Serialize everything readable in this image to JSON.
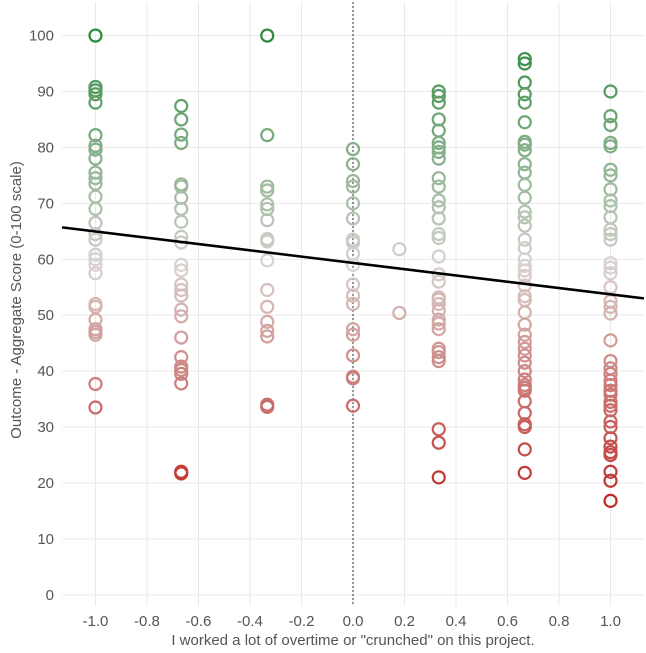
{
  "chart_data": {
    "type": "scatter",
    "title": "",
    "xlabel": "I worked a lot of overtime or \"crunched\" on this project.",
    "ylabel": "Outcome - Aggregate Score (0-100 scale)",
    "xlim": [
      -1.13,
      1.13
    ],
    "ylim": [
      -2,
      106
    ],
    "grid": true,
    "x_ticks": [
      -1.0,
      -0.8,
      -0.6,
      -0.4,
      -0.2,
      0.0,
      0.2,
      0.4,
      0.6,
      0.8,
      1.0
    ],
    "x_tick_labels": [
      "-1.0",
      "-0.8",
      "-0.6",
      "-0.4",
      "-0.2",
      "0.0",
      "0.2",
      "0.4",
      "0.6",
      "0.8",
      "1.0"
    ],
    "y_ticks": [
      0,
      10,
      20,
      30,
      40,
      50,
      60,
      70,
      80,
      90,
      100
    ],
    "y_tick_labels": [
      "0",
      "10",
      "20",
      "30",
      "40",
      "50",
      "60",
      "70",
      "80",
      "90",
      "100"
    ],
    "reference_line_x": 0.0,
    "trendline": {
      "x": [
        -1.13,
        1.13
      ],
      "y": [
        65.7,
        53.0
      ],
      "color": "#000000"
    },
    "color_scale": {
      "low": "#c02a26",
      "mid": "#d9d3d1",
      "high": "#2e8a3e",
      "low_value": 17,
      "mid_value": 59,
      "high_value": 100
    },
    "series": [
      {
        "name": "points",
        "points": [
          {
            "x": -1.0,
            "y": 100
          },
          {
            "x": -1.0,
            "y": 90.8
          },
          {
            "x": -1.0,
            "y": 90.2
          },
          {
            "x": -1.0,
            "y": 89.5
          },
          {
            "x": -1.0,
            "y": 88
          },
          {
            "x": -1.0,
            "y": 82.2
          },
          {
            "x": -1.0,
            "y": 80.3
          },
          {
            "x": -1.0,
            "y": 79.6
          },
          {
            "x": -1.0,
            "y": 78
          },
          {
            "x": -1.0,
            "y": 75.5
          },
          {
            "x": -1.0,
            "y": 74.5
          },
          {
            "x": -1.0,
            "y": 73.5
          },
          {
            "x": -1.0,
            "y": 71.2
          },
          {
            "x": -1.0,
            "y": 69
          },
          {
            "x": -1.0,
            "y": 66.5
          },
          {
            "x": -1.0,
            "y": 64.5
          },
          {
            "x": -1.0,
            "y": 63.5
          },
          {
            "x": -1.0,
            "y": 60.8
          },
          {
            "x": -1.0,
            "y": 60
          },
          {
            "x": -1.0,
            "y": 59
          },
          {
            "x": -1.0,
            "y": 57.5
          },
          {
            "x": -1.0,
            "y": 52
          },
          {
            "x": -1.0,
            "y": 51.5
          },
          {
            "x": -1.0,
            "y": 49.2
          },
          {
            "x": -1.0,
            "y": 47.5
          },
          {
            "x": -1.0,
            "y": 47
          },
          {
            "x": -1.0,
            "y": 46.5
          },
          {
            "x": -1.0,
            "y": 37.7
          },
          {
            "x": -1.0,
            "y": 33.5
          },
          {
            "x": -0.667,
            "y": 87.4
          },
          {
            "x": -0.667,
            "y": 85
          },
          {
            "x": -0.667,
            "y": 82.3
          },
          {
            "x": -0.667,
            "y": 80.8
          },
          {
            "x": -0.667,
            "y": 73.4
          },
          {
            "x": -0.667,
            "y": 73
          },
          {
            "x": -0.667,
            "y": 71
          },
          {
            "x": -0.667,
            "y": 69
          },
          {
            "x": -0.667,
            "y": 66.7
          },
          {
            "x": -0.667,
            "y": 64
          },
          {
            "x": -0.667,
            "y": 63
          },
          {
            "x": -0.667,
            "y": 59
          },
          {
            "x": -0.667,
            "y": 58
          },
          {
            "x": -0.667,
            "y": 55.5
          },
          {
            "x": -0.667,
            "y": 54.5
          },
          {
            "x": -0.667,
            "y": 53.5
          },
          {
            "x": -0.667,
            "y": 51
          },
          {
            "x": -0.667,
            "y": 49.8
          },
          {
            "x": -0.667,
            "y": 46
          },
          {
            "x": -0.667,
            "y": 42.5
          },
          {
            "x": -0.667,
            "y": 40.8
          },
          {
            "x": -0.667,
            "y": 40.2
          },
          {
            "x": -0.667,
            "y": 39.5
          },
          {
            "x": -0.667,
            "y": 37.8
          },
          {
            "x": -0.667,
            "y": 22
          },
          {
            "x": -0.667,
            "y": 21.7
          },
          {
            "x": -0.333,
            "y": 100
          },
          {
            "x": -0.333,
            "y": 82.2
          },
          {
            "x": -0.333,
            "y": 73
          },
          {
            "x": -0.333,
            "y": 72.3
          },
          {
            "x": -0.333,
            "y": 69.8
          },
          {
            "x": -0.333,
            "y": 69
          },
          {
            "x": -0.333,
            "y": 67
          },
          {
            "x": -0.333,
            "y": 63.6
          },
          {
            "x": -0.333,
            "y": 63.2
          },
          {
            "x": -0.333,
            "y": 59.8
          },
          {
            "x": -0.333,
            "y": 54.5
          },
          {
            "x": -0.333,
            "y": 51.5
          },
          {
            "x": -0.333,
            "y": 48.8
          },
          {
            "x": -0.333,
            "y": 47.2
          },
          {
            "x": -0.333,
            "y": 46.2
          },
          {
            "x": -0.333,
            "y": 34
          },
          {
            "x": -0.333,
            "y": 33.6
          },
          {
            "x": 0.0,
            "y": 79.7
          },
          {
            "x": 0.0,
            "y": 77
          },
          {
            "x": 0.0,
            "y": 74
          },
          {
            "x": 0.0,
            "y": 73
          },
          {
            "x": 0.0,
            "y": 70
          },
          {
            "x": 0.0,
            "y": 67.3
          },
          {
            "x": 0.0,
            "y": 63.5
          },
          {
            "x": 0.0,
            "y": 63
          },
          {
            "x": 0.0,
            "y": 61
          },
          {
            "x": 0.0,
            "y": 59
          },
          {
            "x": 0.0,
            "y": 55.5
          },
          {
            "x": 0.0,
            "y": 53.5
          },
          {
            "x": 0.0,
            "y": 52
          },
          {
            "x": 0.0,
            "y": 47.5
          },
          {
            "x": 0.0,
            "y": 46.5
          },
          {
            "x": 0.0,
            "y": 42.8
          },
          {
            "x": 0.0,
            "y": 39
          },
          {
            "x": 0.0,
            "y": 38.7
          },
          {
            "x": 0.0,
            "y": 33.8
          },
          {
            "x": 0.18,
            "y": 61.8
          },
          {
            "x": 0.18,
            "y": 50.4
          },
          {
            "x": 0.333,
            "y": 90
          },
          {
            "x": 0.333,
            "y": 89.2
          },
          {
            "x": 0.333,
            "y": 88
          },
          {
            "x": 0.333,
            "y": 85
          },
          {
            "x": 0.333,
            "y": 83
          },
          {
            "x": 0.333,
            "y": 80.8
          },
          {
            "x": 0.333,
            "y": 80
          },
          {
            "x": 0.333,
            "y": 79.2
          },
          {
            "x": 0.333,
            "y": 78
          },
          {
            "x": 0.333,
            "y": 74.5
          },
          {
            "x": 0.333,
            "y": 73
          },
          {
            "x": 0.333,
            "y": 70.5
          },
          {
            "x": 0.333,
            "y": 69.3
          },
          {
            "x": 0.333,
            "y": 67.3
          },
          {
            "x": 0.333,
            "y": 64.5
          },
          {
            "x": 0.333,
            "y": 63.8
          },
          {
            "x": 0.333,
            "y": 60.5
          },
          {
            "x": 0.333,
            "y": 57.3
          },
          {
            "x": 0.333,
            "y": 56
          },
          {
            "x": 0.333,
            "y": 53.2
          },
          {
            "x": 0.333,
            "y": 52.8
          },
          {
            "x": 0.333,
            "y": 52
          },
          {
            "x": 0.333,
            "y": 50.8
          },
          {
            "x": 0.333,
            "y": 49.2
          },
          {
            "x": 0.333,
            "y": 48.5
          },
          {
            "x": 0.333,
            "y": 47.5
          },
          {
            "x": 0.333,
            "y": 44
          },
          {
            "x": 0.333,
            "y": 43.4
          },
          {
            "x": 0.333,
            "y": 42.5
          },
          {
            "x": 0.333,
            "y": 41.8
          },
          {
            "x": 0.333,
            "y": 29.6
          },
          {
            "x": 0.333,
            "y": 27.2
          },
          {
            "x": 0.333,
            "y": 21
          },
          {
            "x": 0.667,
            "y": 95.8
          },
          {
            "x": 0.667,
            "y": 95
          },
          {
            "x": 0.667,
            "y": 91.6
          },
          {
            "x": 0.667,
            "y": 89.5
          },
          {
            "x": 0.667,
            "y": 88
          },
          {
            "x": 0.667,
            "y": 84.5
          },
          {
            "x": 0.667,
            "y": 81
          },
          {
            "x": 0.667,
            "y": 80.5
          },
          {
            "x": 0.667,
            "y": 79.5
          },
          {
            "x": 0.667,
            "y": 77
          },
          {
            "x": 0.667,
            "y": 75.5
          },
          {
            "x": 0.667,
            "y": 73.3
          },
          {
            "x": 0.667,
            "y": 71
          },
          {
            "x": 0.667,
            "y": 68.5
          },
          {
            "x": 0.667,
            "y": 67.5
          },
          {
            "x": 0.667,
            "y": 66
          },
          {
            "x": 0.667,
            "y": 63.5
          },
          {
            "x": 0.667,
            "y": 62
          },
          {
            "x": 0.667,
            "y": 60
          },
          {
            "x": 0.667,
            "y": 58.8
          },
          {
            "x": 0.667,
            "y": 58
          },
          {
            "x": 0.667,
            "y": 57
          },
          {
            "x": 0.667,
            "y": 55.3
          },
          {
            "x": 0.667,
            "y": 53.4
          },
          {
            "x": 0.667,
            "y": 52.7
          },
          {
            "x": 0.667,
            "y": 50.5
          },
          {
            "x": 0.667,
            "y": 48.3
          },
          {
            "x": 0.667,
            "y": 46.5
          },
          {
            "x": 0.667,
            "y": 45.2
          },
          {
            "x": 0.667,
            "y": 44
          },
          {
            "x": 0.667,
            "y": 42.8
          },
          {
            "x": 0.667,
            "y": 41.5
          },
          {
            "x": 0.667,
            "y": 40
          },
          {
            "x": 0.667,
            "y": 38.5
          },
          {
            "x": 0.667,
            "y": 37.5
          },
          {
            "x": 0.667,
            "y": 37
          },
          {
            "x": 0.667,
            "y": 36.5
          },
          {
            "x": 0.667,
            "y": 34.6
          },
          {
            "x": 0.667,
            "y": 32.5
          },
          {
            "x": 0.667,
            "y": 30.5
          },
          {
            "x": 0.667,
            "y": 30
          },
          {
            "x": 0.667,
            "y": 26
          },
          {
            "x": 0.667,
            "y": 21.8
          },
          {
            "x": 1.0,
            "y": 90
          },
          {
            "x": 1.0,
            "y": 85.6
          },
          {
            "x": 1.0,
            "y": 84
          },
          {
            "x": 1.0,
            "y": 80.8
          },
          {
            "x": 1.0,
            "y": 80.2
          },
          {
            "x": 1.0,
            "y": 76
          },
          {
            "x": 1.0,
            "y": 75
          },
          {
            "x": 1.0,
            "y": 72.5
          },
          {
            "x": 1.0,
            "y": 70.5
          },
          {
            "x": 1.0,
            "y": 69.5
          },
          {
            "x": 1.0,
            "y": 67.5
          },
          {
            "x": 1.0,
            "y": 65.3
          },
          {
            "x": 1.0,
            "y": 64.5
          },
          {
            "x": 1.0,
            "y": 63.5
          },
          {
            "x": 1.0,
            "y": 59.3
          },
          {
            "x": 1.0,
            "y": 58.5
          },
          {
            "x": 1.0,
            "y": 57.5
          },
          {
            "x": 1.0,
            "y": 55
          },
          {
            "x": 1.0,
            "y": 52.5
          },
          {
            "x": 1.0,
            "y": 51.5
          },
          {
            "x": 1.0,
            "y": 50.3
          },
          {
            "x": 1.0,
            "y": 45.5
          },
          {
            "x": 1.0,
            "y": 41.8
          },
          {
            "x": 1.0,
            "y": 40.5
          },
          {
            "x": 1.0,
            "y": 39.5
          },
          {
            "x": 1.0,
            "y": 38.3
          },
          {
            "x": 1.0,
            "y": 37.5
          },
          {
            "x": 1.0,
            "y": 36.5
          },
          {
            "x": 1.0,
            "y": 35.8
          },
          {
            "x": 1.0,
            "y": 34.5
          },
          {
            "x": 1.0,
            "y": 33.8
          },
          {
            "x": 1.0,
            "y": 33
          },
          {
            "x": 1.0,
            "y": 31
          },
          {
            "x": 1.0,
            "y": 30
          },
          {
            "x": 1.0,
            "y": 28
          },
          {
            "x": 1.0,
            "y": 26.5
          },
          {
            "x": 1.0,
            "y": 25.5
          },
          {
            "x": 1.0,
            "y": 25
          },
          {
            "x": 1.0,
            "y": 22
          },
          {
            "x": 1.0,
            "y": 20.4
          },
          {
            "x": 1.0,
            "y": 16.8
          }
        ]
      }
    ]
  }
}
